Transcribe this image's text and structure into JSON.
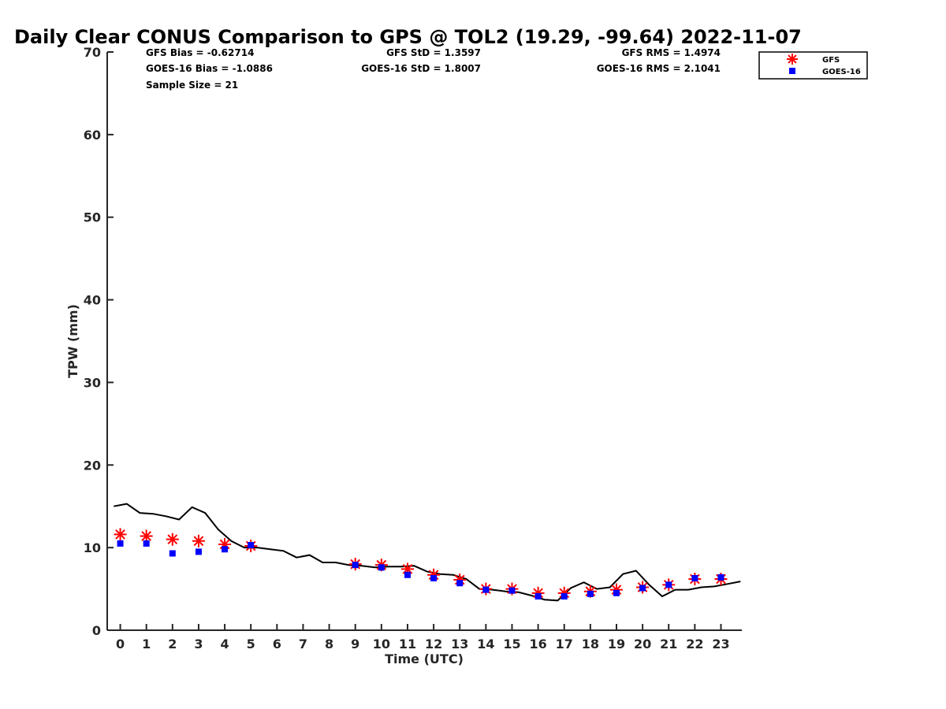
{
  "chart_data": {
    "type": "scatter",
    "title": "Daily Clear CONUS Comparison to GPS @ TOL2 (19.29, -99.64) 2022-11-07",
    "xlabel": "Time (UTC)",
    "ylabel": "TPW (mm)",
    "xlim": [
      -0.5,
      23.8
    ],
    "ylim": [
      0,
      70
    ],
    "x_ticks": [
      "0",
      "1",
      "2",
      "3",
      "4",
      "5",
      "6",
      "7",
      "8",
      "9",
      "10",
      "11",
      "12",
      "13",
      "14",
      "15",
      "16",
      "17",
      "18",
      "19",
      "20",
      "21",
      "22",
      "23"
    ],
    "y_ticks": [
      "0",
      "10",
      "20",
      "30",
      "40",
      "50",
      "60",
      "70"
    ],
    "grid": false,
    "legend_position": "top-right",
    "stats": {
      "gfs_bias": "GFS Bias = -0.62714",
      "goes_bias": "GOES-16 Bias = -1.0886",
      "sample_size": "Sample Size = 21",
      "gfs_std": "GFS StD = 1.3597",
      "goes_std": "GOES-16 StD = 1.8007",
      "gfs_rms": "GFS RMS = 1.4974",
      "goes_rms": "GOES-16 RMS = 2.1041"
    },
    "series": [
      {
        "name": "GFS",
        "marker": "asterisk",
        "color": "#ff0000",
        "x": [
          0,
          1,
          2,
          3,
          4,
          5,
          9,
          10,
          11,
          12,
          13,
          14,
          15,
          16,
          17,
          18,
          19,
          20,
          21,
          22,
          23
        ],
        "y": [
          11.6,
          11.4,
          11.0,
          10.8,
          10.4,
          10.2,
          8.0,
          7.9,
          7.4,
          6.7,
          6.1,
          5.0,
          5.0,
          4.5,
          4.5,
          4.7,
          4.9,
          5.2,
          5.5,
          6.2,
          6.2
        ]
      },
      {
        "name": "GOES-16",
        "marker": "square",
        "color": "#0000ff",
        "x": [
          0,
          1,
          2,
          3,
          4,
          5,
          9,
          10,
          11,
          12,
          13,
          14,
          15,
          16,
          17,
          18,
          19,
          20,
          21,
          22,
          23
        ],
        "y": [
          10.5,
          10.5,
          9.3,
          9.5,
          9.8,
          10.3,
          7.9,
          7.6,
          6.7,
          6.3,
          5.7,
          4.9,
          4.8,
          4.1,
          4.1,
          4.4,
          4.5,
          5.1,
          5.5,
          6.3,
          6.4
        ]
      },
      {
        "marker": "line",
        "color": "#000000",
        "x": [
          -0.25,
          0.25,
          0.75,
          1.25,
          1.75,
          2.25,
          2.75,
          3.25,
          3.75,
          4.25,
          4.75,
          5.25,
          5.75,
          6.25,
          6.75,
          7.25,
          7.75,
          8.25,
          8.75,
          9.25,
          9.75,
          10.25,
          10.75,
          11.25,
          11.75,
          12.25,
          12.75,
          13.25,
          13.75,
          14.25,
          14.75,
          15.25,
          15.75,
          16.25,
          16.75,
          17.25,
          17.75,
          18.25,
          18.75,
          19.25,
          19.75,
          20.25,
          20.75,
          21.25,
          21.75,
          22.25,
          22.75,
          23.25,
          23.75
        ],
        "y": [
          15.0,
          15.3,
          14.2,
          14.1,
          13.8,
          13.4,
          14.9,
          14.2,
          12.2,
          10.8,
          10.0,
          10.0,
          9.8,
          9.6,
          8.8,
          9.1,
          8.2,
          8.2,
          7.9,
          7.8,
          7.6,
          7.7,
          7.7,
          7.8,
          7.1,
          6.8,
          6.7,
          6.2,
          5.0,
          4.9,
          4.7,
          4.6,
          4.2,
          3.7,
          3.6,
          5.1,
          5.8,
          5.0,
          5.2,
          6.8,
          7.2,
          5.5,
          4.1,
          4.9,
          4.9,
          5.2,
          5.3,
          5.6,
          5.9
        ]
      }
    ]
  }
}
